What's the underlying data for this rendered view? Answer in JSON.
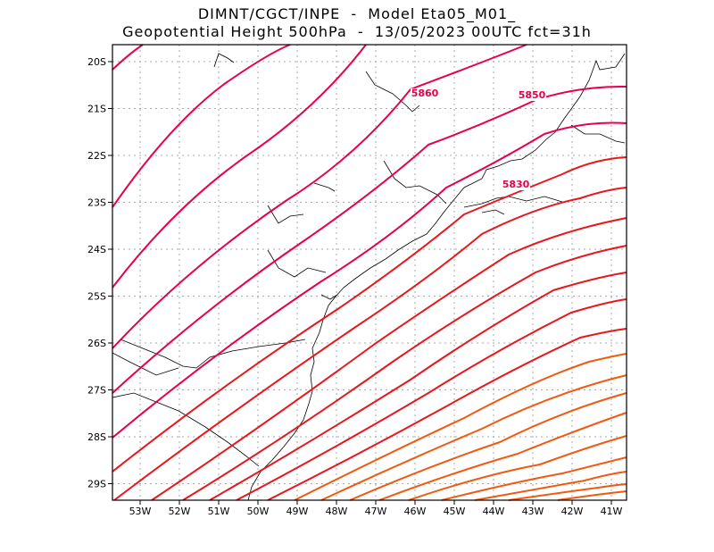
{
  "titles": {
    "line1": "DIMNT/CGCT/INPE  -  Model Eta05_M01_",
    "line2": "Geopotential Height 500hPa  -  13/05/2023 00UTC fct=31h"
  },
  "map": {
    "lon_range": [
      -53.7,
      -40.5
    ],
    "lat_range": [
      -29.4,
      -19.7
    ],
    "lon_ticks": [
      "53W",
      "52W",
      "51W",
      "50W",
      "49W",
      "48W",
      "47W",
      "46W",
      "45W",
      "44W",
      "43W",
      "42W",
      "41W"
    ],
    "lat_ticks": [
      "20S",
      "21S",
      "22S",
      "23S",
      "24S",
      "25S",
      "26S",
      "27S",
      "28S",
      "29S"
    ],
    "grid": true,
    "contour_labels": [
      {
        "text": "5860",
        "color": "#e8004a"
      },
      {
        "text": "5850",
        "color": "#e8004a"
      },
      {
        "text": "5830",
        "color": "#e8004a"
      }
    ],
    "colors": {
      "contour_magenta": "#e8004a",
      "contour_red": "#e8171d",
      "contour_orange": "#f05a10",
      "coastline": "#000000",
      "grid": "#aaaaaa"
    }
  }
}
